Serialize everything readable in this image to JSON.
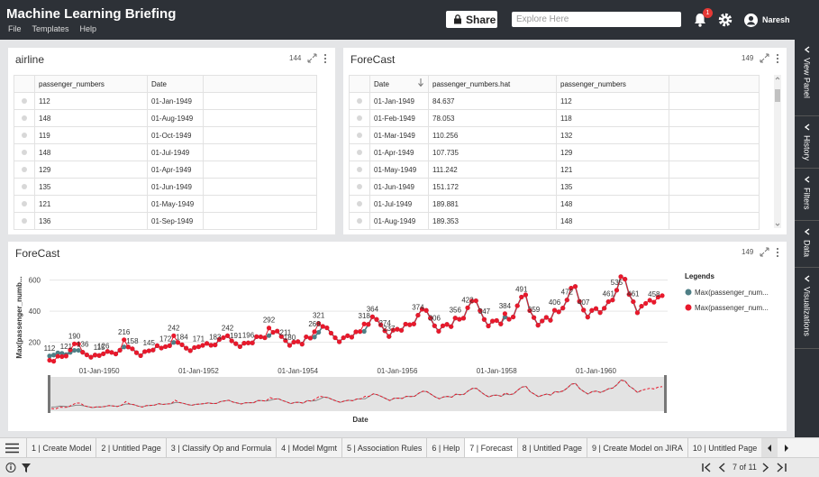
{
  "header": {
    "title": "Machine Learning Briefing",
    "menu": [
      "File",
      "Templates",
      "Help"
    ],
    "share": "Share",
    "search_placeholder": "Explore Here",
    "notification_count": 1,
    "user": "Naresh"
  },
  "side_tabs": [
    "View Panel",
    "History",
    "Filters",
    "Data",
    "Visualizations"
  ],
  "panels": [
    {
      "title": "airline",
      "count": 144,
      "columns": [
        "passenger_numbers",
        "Date"
      ],
      "rows": [
        [
          112,
          "01-Jan-1949"
        ],
        [
          148,
          "01-Aug-1949"
        ],
        [
          119,
          "01-Oct-1949"
        ],
        [
          148,
          "01-Jul-1949"
        ],
        [
          129,
          "01-Apr-1949"
        ],
        [
          135,
          "01-Jun-1949"
        ],
        [
          121,
          "01-May-1949"
        ],
        [
          136,
          "01-Sep-1949"
        ]
      ]
    },
    {
      "title": "ForeCast",
      "count": 149,
      "columns": [
        "Date",
        "passenger_numbers.hat",
        "passenger_numbers"
      ],
      "rows": [
        [
          "01-Jan-1949",
          84.637,
          112
        ],
        [
          "01-Feb-1949",
          78.053,
          118
        ],
        [
          "01-Mar-1949",
          110.256,
          132
        ],
        [
          "01-Apr-1949",
          107.735,
          129
        ],
        [
          "01-May-1949",
          111.242,
          121
        ],
        [
          "01-Jun-1949",
          151.172,
          135
        ],
        [
          "01-Jul-1949",
          189.881,
          148
        ],
        [
          "01-Aug-1949",
          189.353,
          148
        ]
      ]
    }
  ],
  "chart_panel": {
    "title": "ForeCast",
    "count": 149
  },
  "chart_data": {
    "type": "line",
    "y_label": "Max(passenger_numb...",
    "x_label": "Date",
    "legend_title": "Legends",
    "legend": "right",
    "grid": true,
    "ylim": [
      70,
      650
    ],
    "yticks": [
      200,
      400,
      600
    ],
    "categories": [
      null,
      null,
      null,
      null,
      null,
      null,
      null,
      null,
      null,
      null,
      null,
      null,
      "01-Jan-1950",
      null,
      null,
      null,
      null,
      null,
      null,
      null,
      null,
      null,
      null,
      null,
      null,
      null,
      null,
      null,
      null,
      null,
      null,
      null,
      null,
      null,
      null,
      null,
      "01-Jan-1952",
      null,
      null,
      null,
      null,
      null,
      null,
      null,
      null,
      null,
      null,
      null,
      null,
      null,
      null,
      null,
      null,
      null,
      null,
      null,
      null,
      null,
      null,
      null,
      "01-Jan-1954",
      null,
      null,
      null,
      null,
      null,
      null,
      null,
      null,
      null,
      null,
      null,
      null,
      null,
      null,
      null,
      null,
      null,
      null,
      null,
      null,
      null,
      null,
      null,
      "01-Jan-1956",
      null,
      null,
      null,
      null,
      null,
      null,
      null,
      null,
      null,
      null,
      null,
      null,
      null,
      null,
      null,
      null,
      null,
      null,
      null,
      null,
      null,
      null,
      null,
      "01-Jan-1958",
      null,
      null,
      null,
      null,
      null,
      null,
      null,
      null,
      null,
      null,
      null,
      null,
      null,
      null,
      null,
      null,
      null,
      null,
      null,
      null,
      null,
      null,
      null,
      "01-Jan-1960",
      null,
      null,
      null,
      null,
      null,
      null,
      null,
      null,
      null,
      null,
      null,
      null,
      null,
      null,
      null,
      null
    ],
    "series": [
      {
        "name": "Max(passenger_num...",
        "color": "#4f7f86",
        "values": [
          112,
          118,
          132,
          129,
          121,
          135,
          148,
          148,
          136,
          119,
          104,
          118,
          115,
          126,
          141,
          135,
          125,
          149,
          170,
          170,
          158,
          133,
          114,
          140,
          145,
          150,
          178,
          163,
          172,
          178,
          199,
          199,
          184,
          162,
          146,
          166,
          171,
          180,
          193,
          181,
          183,
          218,
          230,
          242,
          209,
          191,
          172,
          194,
          196,
          196,
          236,
          235,
          229,
          243,
          264,
          272,
          237,
          211,
          180,
          201,
          204,
          188,
          235,
          227,
          234,
          264,
          302,
          293,
          259,
          229,
          203,
          229,
          242,
          233,
          267,
          269,
          270,
          315,
          364,
          347,
          312,
          274,
          237,
          278,
          284,
          277,
          317,
          313,
          318,
          374,
          413,
          405,
          355,
          306,
          271,
          306,
          315,
          301,
          356,
          348,
          355,
          422,
          465,
          467,
          404,
          347,
          305,
          336,
          340,
          318,
          362,
          348,
          363,
          435,
          491,
          505,
          404,
          359,
          310,
          337,
          360,
          342,
          406,
          396,
          420,
          472,
          548,
          559,
          463,
          407,
          362,
          405,
          417,
          391,
          419,
          461,
          472,
          535,
          622,
          606,
          508,
          461,
          390,
          432,
          null,
          null,
          null,
          null,
          null
        ],
        "value_labels": [
          "112",
          null,
          null,
          null,
          "121",
          null,
          null,
          null,
          "136",
          null,
          null,
          null,
          "115",
          "126",
          null,
          null,
          null,
          null,
          null,
          null,
          "158",
          null,
          null,
          null,
          "145",
          null,
          null,
          null,
          "172",
          null,
          null,
          null,
          "184",
          null,
          null,
          null,
          "171",
          null,
          null,
          null,
          "183",
          null,
          null,
          "242",
          null,
          "191",
          null,
          null,
          "196",
          null,
          null,
          null,
          null,
          null,
          null,
          null,
          null,
          "211",
          "180",
          null,
          null,
          null,
          null,
          null,
          null,
          null,
          null,
          null,
          null,
          null,
          null,
          null,
          null,
          null,
          null,
          null,
          null,
          null,
          "364",
          null,
          null,
          "274",
          "237",
          null,
          null,
          null,
          null,
          null,
          null,
          "374",
          null,
          null,
          null,
          "306",
          null,
          null,
          null,
          null,
          "356",
          null,
          null,
          "422",
          null,
          null,
          null,
          "347",
          null,
          null,
          null,
          null,
          null,
          null,
          null,
          null,
          "491",
          null,
          null,
          "359",
          null,
          null,
          null,
          null,
          "406",
          null,
          null,
          "472",
          null,
          null,
          null,
          "407",
          null,
          null,
          null,
          null,
          null,
          "461",
          null,
          "535",
          null,
          null,
          null,
          "461",
          null,
          null,
          null,
          null,
          null,
          null,
          null
        ]
      },
      {
        "name": "Max(passenger_num...",
        "color": "#e8192c",
        "values": [
          84.637,
          78.053,
          110.256,
          107.735,
          111.242,
          151.172,
          189.881,
          189.353,
          136,
          119,
          104,
          118,
          115,
          126,
          141,
          135,
          125,
          149,
          216,
          170,
          158,
          133,
          114,
          140,
          145,
          150,
          178,
          163,
          172,
          178,
          242,
          199,
          184,
          162,
          146,
          166,
          171,
          180,
          193,
          181,
          183,
          218,
          230,
          242,
          209,
          191,
          172,
          194,
          196,
          196,
          236,
          235,
          229,
          292,
          264,
          272,
          237,
          211,
          180,
          201,
          204,
          188,
          235,
          227,
          268,
          321,
          302,
          293,
          259,
          229,
          203,
          229,
          242,
          233,
          267,
          269,
          318,
          315,
          364,
          347,
          312,
          274,
          237,
          278,
          284,
          277,
          317,
          313,
          318,
          374,
          413,
          405,
          355,
          306,
          271,
          306,
          315,
          301,
          356,
          348,
          355,
          422,
          465,
          467,
          404,
          347,
          305,
          336,
          340,
          318,
          384,
          348,
          363,
          435,
          491,
          505,
          404,
          359,
          310,
          337,
          360,
          342,
          406,
          396,
          420,
          472,
          548,
          559,
          463,
          407,
          362,
          405,
          417,
          391,
          419,
          461,
          472,
          535,
          622,
          606,
          508,
          461,
          390,
          432,
          450,
          470,
          458,
          490,
          500
        ],
        "value_labels": [
          null,
          null,
          null,
          null,
          null,
          null,
          "190",
          null,
          null,
          null,
          null,
          null,
          null,
          null,
          null,
          null,
          null,
          null,
          "216",
          null,
          null,
          null,
          null,
          null,
          null,
          null,
          null,
          null,
          null,
          null,
          "242",
          null,
          null,
          null,
          null,
          null,
          null,
          null,
          null,
          null,
          null,
          null,
          null,
          null,
          null,
          null,
          null,
          null,
          null,
          null,
          null,
          null,
          null,
          "292",
          null,
          null,
          null,
          null,
          null,
          null,
          null,
          null,
          null,
          null,
          "268",
          "321",
          null,
          null,
          null,
          null,
          null,
          null,
          null,
          null,
          null,
          null,
          "318",
          null,
          null,
          null,
          null,
          null,
          null,
          null,
          null,
          null,
          null,
          null,
          null,
          null,
          null,
          null,
          null,
          null,
          null,
          null,
          null,
          null,
          null,
          null,
          null,
          null,
          null,
          null,
          null,
          null,
          null,
          null,
          null,
          null,
          "384",
          null,
          null,
          null,
          null,
          null,
          null,
          null,
          null,
          null,
          null,
          null,
          null,
          null,
          null,
          null,
          null,
          null,
          null,
          null,
          null,
          null,
          null,
          null,
          null,
          null,
          null,
          null,
          null,
          null,
          null,
          null,
          null,
          null,
          null,
          null,
          "458",
          null,
          null
        ]
      }
    ]
  },
  "tabs": [
    {
      "label": "1 | Create Model"
    },
    {
      "label": "2 | Untitled Page"
    },
    {
      "label": "3 | Classify Op and Formula"
    },
    {
      "label": "4 | Model Mgmt"
    },
    {
      "label": "5 | Association Rules"
    },
    {
      "label": "6 | Help"
    },
    {
      "label": "7 | Forecast",
      "active": true
    },
    {
      "label": "8 | Untitled Page"
    },
    {
      "label": "9 | Create Model on JIRA"
    },
    {
      "label": "10 | Untitled Page"
    }
  ],
  "pager": "7 of 11"
}
